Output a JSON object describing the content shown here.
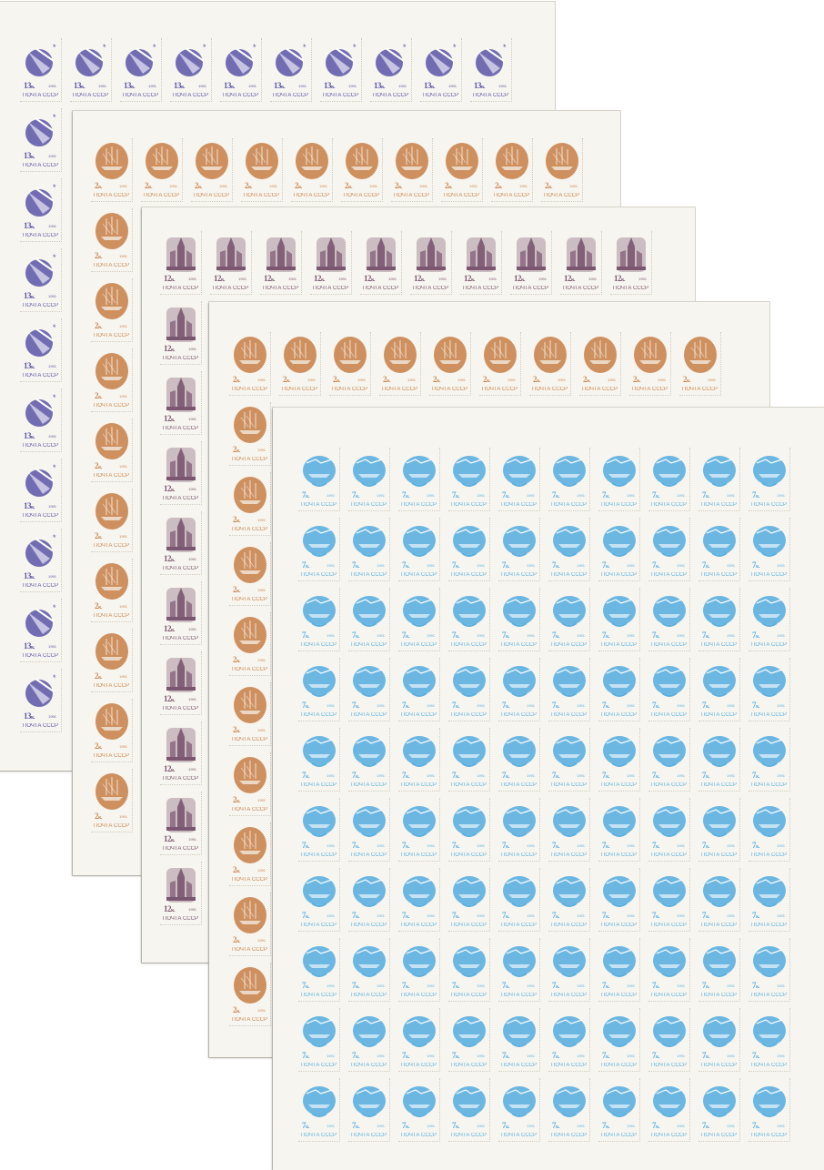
{
  "sheets": [
    {
      "name": "sheet-13k",
      "value": "13",
      "unit": "к.",
      "year": "1991",
      "country": "ПОЧТА СССР",
      "color": "#5a55a8",
      "design": "globe-envelope",
      "rows": 10,
      "cols": 10
    },
    {
      "name": "sheet-2k-orange",
      "value": "2",
      "unit": "к.",
      "year": "1991",
      "country": "ПОЧТА СССР",
      "color": "#c9854f",
      "design": "ship-train-oval",
      "rows": 10,
      "cols": 10
    },
    {
      "name": "sheet-12k",
      "value": "12",
      "unit": "к.",
      "year": "1991",
      "country": "ПОЧТА СССР",
      "color": "#7a5670",
      "design": "space-rocket",
      "rows": 10,
      "cols": 10
    },
    {
      "name": "sheet-2k-orange-second",
      "value": "2",
      "unit": "к.",
      "year": "1991",
      "country": "ПОЧТА СССР",
      "color": "#c9854f",
      "design": "ship-train-oval",
      "rows": 10,
      "cols": 10
    },
    {
      "name": "sheet-7k",
      "value": "7",
      "unit": "к.",
      "year": "1991",
      "country": "ПОЧТА СССР",
      "color": "#5bb0e0",
      "design": "ship-plane-globe",
      "rows": 10,
      "cols": 10
    }
  ]
}
